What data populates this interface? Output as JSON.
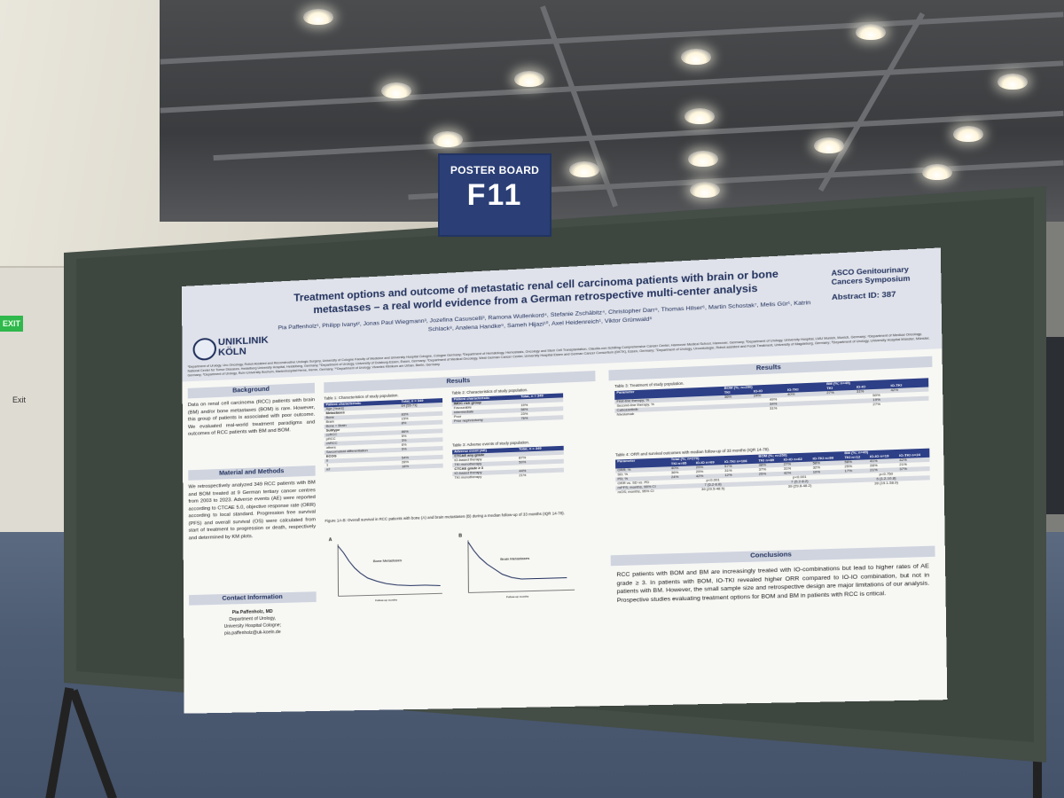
{
  "scene": {
    "exit_sign": "EXIT",
    "wall_sign": "Exit",
    "colors": {
      "board": "#444d46",
      "sign": "#2b3f76",
      "floor": "#4d5c73",
      "poster_header": "#dfe2ea",
      "table_header": "#2d3f86"
    }
  },
  "sign": {
    "top": "POSTER BOARD",
    "code": "F11"
  },
  "poster": {
    "institution": "UNIKLINIK KÖLN",
    "title": "Treatment options and outcome of metastatic renal cell carcinoma patients with brain or bone metastases – a real world evidence from a German retrospective multi-center analysis",
    "authors": "Pia Paffenholz¹, Philipp Ivanyi², Jonas Paul Wiegmann³, Jozefina Casuscelli³, Ramona Wullenkord⁴, Stefanie Zschäbitz⁴, Christopher Darr⁵, Thomas Hilser⁶, Martin Schostak⁷, Melis Gür¹, Katrin Schlack⁸, Analena Handke⁹, Sameh Hijazi¹⁰, Axel Heidenreich¹, Viktor Grünwald⁶",
    "affiliations": "¹Department of Urology, Uro-Oncology, Robot-Assisted and Reconstructive Urologic Surgery, University of Cologne Faculty of Medicine and University Hospital Cologne, Cologne Germany; ²Department of Hematology, Hemostasis, Oncology and Stem Cell Transplantation, Claudia-von-Schilling Comprehensive Cancer Center, Hannover Medical School, Hannover, Germany; ³Department of Urology, University Hospital, LMU Munich, Munich, Germany; ⁴Department of Medical Oncology, National Center for Tumor Diseases, Heidelberg University Hospital, Heidelberg, Germany; ⁵Department of Urology, University of Duisburg-Essen, Essen, Germany; ⁶Department of Medical Oncology, West German Cancer Center, University Hospital Essen and German Cancer Consortium (DKTK), Essen, Germany; ⁷Department of Urology, Uroonkologie, Robot-assisted and Focal Treatment, University of Magdeburg, Germany; ⁸Department of Urology, University Hospital Münster, Münster, Germany; ⁹Department of Urology, Ruhr-University Bochum, Marienhospital Herne, Herne, Germany; ¹⁰Department of Urology, Vivantes Klinikum am Urban, Berlin, Germany",
    "asco": "ASCO Genitourinary Cancers Symposium",
    "abstract_id": "Abstract ID: 387",
    "background": {
      "heading": "Background",
      "text": "Data on renal cell carcinoma (RCC) patients with brain (BM) and/or bone metastases (BOM) is rare. However, this group of patients is associated with poor outcome. We evaluated real-world treatment paradigms and outcomes of RCC patients with BM and BOM."
    },
    "methods": {
      "heading": "Material and Methods",
      "text": "We retrospectively analyzed 349 RCC patients with BM and BOM treated at 9 German tertiary cancer centres from 2003 to 2023. Adverse events (AE) were reported according to CTCAE 5.0, objective response rate (ORR) according to local standard. Progression free survival (PFS) and overall survival (OS) were calculated from start of treatment to progression or death, respectively and determined by KM plots."
    },
    "contact": {
      "heading": "Contact Information",
      "name": "Pia Paffenholz, MD",
      "dept": "Department of Urology,",
      "hospital": "University Hospital Cologne;",
      "email": "pia.paffenholz@uk-koeln.de"
    },
    "results_heading": "Results",
    "results2_heading": "Results",
    "table1": {
      "caption": "Table 1: Characteristics of study population.",
      "header": [
        "Patient characteristic",
        "Total, n = 349"
      ],
      "rows": [
        [
          "Age [Years]",
          "64 [55-71]"
        ],
        [
          "Metastases",
          ""
        ],
        [
          "Bone",
          "83%"
        ],
        [
          "Brain",
          "15%"
        ],
        [
          "Bone + Brain",
          "8%"
        ],
        [
          "Subtype",
          ""
        ],
        [
          "ccRCC",
          "86%"
        ],
        [
          "pRCC",
          "5%"
        ],
        [
          "chRCC",
          "3%"
        ],
        [
          "others",
          "6%"
        ],
        [
          "Sarcomatoid differentiation",
          "5%"
        ],
        [
          "ECOG",
          ""
        ],
        [
          "0",
          "54%"
        ],
        [
          "1",
          "28%"
        ],
        [
          "≥2",
          "18%"
        ]
      ]
    },
    "table2": {
      "caption": "Table 2: Characteristics of study population.",
      "header": [
        "Patient characteristic",
        "Total, n = 349"
      ],
      "rows": [
        [
          "IMDC risk group",
          ""
        ],
        [
          "Favourable",
          "19%"
        ],
        [
          "Intermediate",
          "58%"
        ],
        [
          "Poor",
          "23%"
        ],
        [
          "Prior nephrectomy",
          "76%"
        ]
      ]
    },
    "table3ae": {
      "caption": "Table 3: Adverse events of study population.",
      "header": [
        "Adverse event (AE)",
        "Total, n = 349"
      ],
      "rows": [
        [
          "CTCAE any grade",
          ""
        ],
        [
          "IO-based therapy",
          "87%"
        ],
        [
          "TKI monotherapy",
          "50%"
        ],
        [
          "CTCAE grade ≥ 3",
          ""
        ],
        [
          "IO-based therapy",
          "44%"
        ],
        [
          "TKI monotherapy",
          "21%"
        ]
      ]
    },
    "figure": {
      "caption": "Figure 1A-B: Overall survival in RCC patients with bone (A) and brain metastases (B) during a median follow-up of 33 months (IQR 14-78).",
      "label_a": "A",
      "label_b": "B",
      "legend_a": "Bone Metastases",
      "legend_b": "Brain Metastases",
      "xlabel": "Follow-up months",
      "ylabel": "Overall Survival (%)"
    },
    "table3": {
      "caption": "Table 3: Treatment of study population.",
      "header": [
        "Parameter",
        "BOM (%; n=250)",
        "BM (%; n=45)"
      ],
      "subheader": [
        "",
        "TKI",
        "IO-IO",
        "IO-TKI",
        "TKI",
        "IO-IO",
        "IO-TKI"
      ],
      "rows": [
        [
          "First-line therapy; %",
          "36%",
          "24%",
          "40%",
          "27%",
          "31%",
          "42%"
        ],
        [
          "Second-line therapy, %",
          "49%",
          "50%"
        ],
        [
          "Cabozantinib",
          "34%",
          "19%"
        ],
        [
          "Nivolumab",
          "31%",
          "27%"
        ]
      ]
    },
    "table4": {
      "caption": "Table 4: ORR and survival outcomes with median follow-up of 33 months (IQR 14-78).",
      "header": [
        "Parameter",
        "Total (%; n=270)",
        "BOM (%; n=250)",
        "BM (%; n=45)"
      ],
      "subheader": [
        "",
        "TKI n=95",
        "IO-IO n=69",
        "IO-TKI n=106",
        "TKI n=89",
        "IO-IO n=62",
        "IO-TKI n=99",
        "TKI n=12",
        "IO-IO n=19",
        "IO-TKI n=24"
      ],
      "rows": [
        [
          "ORR; %",
          "40%",
          "29%",
          "57%",
          "38%",
          "27%",
          "58%",
          "58%",
          "41%",
          "42%"
        ],
        [
          "SD; %",
          "36%",
          "29%",
          "31%",
          "37%",
          "31%",
          "32%",
          "25%",
          "28%",
          "21%"
        ],
        [
          "PD; %",
          "24%",
          "42%",
          "12%",
          "25%",
          "42%",
          "10%",
          "17%",
          "21%",
          "37%"
        ],
        [
          "ORR vs. SD vs. PD",
          "p<0.001",
          "p<0.001",
          "p=0.750"
        ],
        [
          "mPFS; months, 95% CI",
          "7 (5.2-8.8)",
          "7 (5.2-8.2)",
          "6 (1.2-10.8)"
        ],
        [
          "mOS; months, 95% CI",
          "39 (29.5-48.5)",
          "39 (29.8-48.2)",
          "39 (19.1-58.9)"
        ]
      ]
    },
    "conclusions": {
      "heading": "Conclusions",
      "text": "RCC patients with BOM and BM are increasingly treated with IO-combinations but lead to higher rates of AE grade ≥ 3. In patients with BOM, IO-TKI revealed higher ORR compared to IO-IO combination, but not in patients with BM. However, the small sample size and retrospective design are major limitations of our analysis. Prospective studies evaluating treatment options for BOM and BM in patients with RCC is critical."
    }
  }
}
